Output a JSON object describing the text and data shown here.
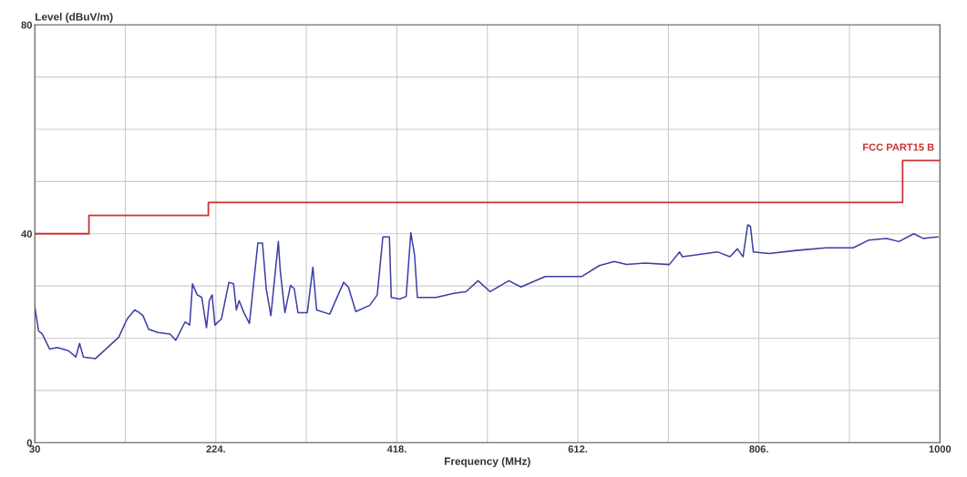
{
  "chart_data": {
    "type": "line",
    "xlabel": "Frequency (MHz)",
    "ylabel": "Level (dBuV/m)",
    "xlim": [
      30,
      1000
    ],
    "ylim": [
      0,
      80
    ],
    "xticks": [
      30,
      {
        "value": 127,
        "label": null
      },
      {
        "value": 224,
        "label": "224."
      },
      {
        "value": 321,
        "label": null
      },
      {
        "value": 418,
        "label": "418."
      },
      {
        "value": 515,
        "label": null
      },
      {
        "value": 612,
        "label": "612."
      },
      {
        "value": 709,
        "label": null
      },
      {
        "value": 806,
        "label": "806."
      },
      {
        "value": 903,
        "label": null
      },
      1000
    ],
    "yticks": [
      0,
      {
        "value": 10,
        "label": null
      },
      {
        "value": 20,
        "label": null
      },
      {
        "value": 30,
        "label": null
      },
      40,
      {
        "value": 50,
        "label": null
      },
      {
        "value": 60,
        "label": null
      },
      {
        "value": 70,
        "label": null
      },
      80
    ],
    "grid": true,
    "legend": false,
    "series": [
      {
        "type": "step",
        "name": "FCC PART15 B",
        "color": "#cc3333",
        "x": [
          30,
          88,
          216,
          960,
          1000
        ],
        "values": [
          40,
          43.5,
          46,
          54,
          54
        ]
      },
      {
        "color": "#3b3fa6",
        "x": [
          30,
          34,
          38,
          46,
          54,
          66,
          74,
          78,
          82,
          95,
          106,
          120,
          129,
          137,
          142,
          146,
          152,
          162,
          175,
          181,
          191,
          196,
          199,
          204,
          209,
          214,
          217,
          220,
          223,
          230,
          238,
          243,
          246,
          249,
          254,
          260,
          269,
          274,
          278,
          283,
          291,
          293,
          298,
          304,
          308,
          312,
          322,
          328,
          332,
          346,
          361,
          366,
          374,
          389,
          397,
          403,
          410,
          412,
          421,
          428,
          433,
          437,
          440,
          460,
          479,
          492,
          505,
          518,
          538,
          551,
          577,
          616,
          635,
          651,
          664,
          684,
          710,
          721,
          724,
          749,
          762,
          775,
          783,
          789,
          794,
          797,
          800,
          817,
          846,
          878,
          907,
          924,
          943,
          956,
          972,
          982,
          998
        ],
        "values": [
          26.0,
          21.4,
          20.8,
          17.9,
          18.2,
          17.6,
          16.4,
          19.0,
          16.4,
          16.1,
          17.9,
          20.2,
          23.7,
          25.4,
          24.9,
          24.3,
          21.7,
          21.1,
          20.8,
          19.6,
          23.1,
          22.5,
          30.4,
          28.3,
          27.8,
          22.0,
          27.2,
          28.3,
          22.5,
          23.7,
          30.7,
          30.4,
          25.4,
          27.2,
          24.9,
          22.8,
          38.2,
          38.2,
          29.5,
          24.3,
          38.5,
          33.0,
          24.9,
          30.1,
          29.5,
          24.9,
          24.9,
          33.6,
          25.4,
          24.6,
          30.7,
          29.8,
          25.1,
          26.3,
          28.3,
          39.4,
          39.4,
          27.8,
          27.5,
          28.0,
          40.2,
          35.9,
          27.8,
          27.8,
          28.6,
          28.9,
          31.0,
          28.9,
          31.0,
          29.8,
          31.8,
          31.8,
          33.9,
          34.7,
          34.1,
          34.4,
          34.1,
          36.5,
          35.6,
          36.2,
          36.5,
          35.6,
          37.1,
          35.6,
          41.7,
          41.4,
          36.5,
          36.2,
          36.8,
          37.3,
          37.3,
          38.8,
          39.1,
          38.5,
          40.0,
          39.1,
          39.4
        ]
      }
    ]
  }
}
